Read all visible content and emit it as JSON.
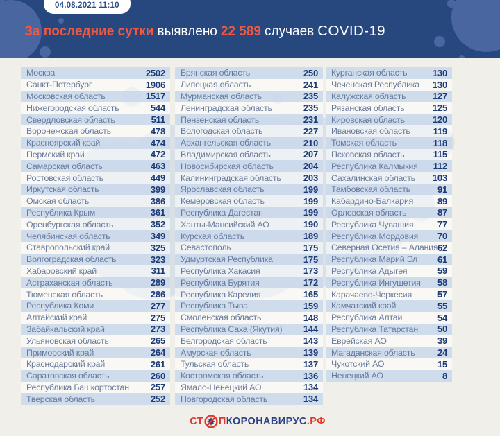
{
  "header": {
    "date": "04.08.2021 11:10",
    "title_accent": "За последние сутки",
    "title_mid": "выявлено",
    "title_count": "22 589",
    "title_tail": "случаев",
    "title_covid": "COVID-19"
  },
  "colors": {
    "header_navy": "#27477f",
    "accent_orange": "#f0583f",
    "stripe_blue": "#cad9ec",
    "value_navy": "#1c3a75",
    "label_gray_blue": "#687b9c",
    "logo_red": "#e03a2f",
    "logo_navy": "#2b3f85",
    "page_background": "#f1efe9"
  },
  "chart_data": {
    "type": "table",
    "title": "За последние сутки выявлено 22 589 случаев COVID-19",
    "total_new_cases": 22589,
    "date": "04.08.2021 11:10",
    "columns": [
      [
        {
          "region": "Москва",
          "value": "2502"
        },
        {
          "region": "Санкт-Петербург",
          "value": "1906"
        },
        {
          "region": "Московская область",
          "value": "1517"
        },
        {
          "region": "Нижегородская область",
          "value": "544"
        },
        {
          "region": "Свердловская область",
          "value": "511"
        },
        {
          "region": "Воронежская область",
          "value": "478"
        },
        {
          "region": "Красноярский край",
          "value": "474"
        },
        {
          "region": "Пермский край",
          "value": "472"
        },
        {
          "region": "Самарская область",
          "value": "463"
        },
        {
          "region": "Ростовская область",
          "value": "449"
        },
        {
          "region": "Иркутская область",
          "value": "399"
        },
        {
          "region": "Омская область",
          "value": "386"
        },
        {
          "region": "Республика Крым",
          "value": "361"
        },
        {
          "region": "Оренбургская область",
          "value": "352"
        },
        {
          "region": "Челябинская область",
          "value": "349"
        },
        {
          "region": "Ставропольский край",
          "value": "325"
        },
        {
          "region": "Волгоградская область",
          "value": "323"
        },
        {
          "region": "Хабаровский край",
          "value": "311"
        },
        {
          "region": "Астраханская область",
          "value": "289"
        },
        {
          "region": "Тюменская область",
          "value": "286"
        },
        {
          "region": "Республика Коми",
          "value": "277"
        },
        {
          "region": "Алтайский край",
          "value": "275"
        },
        {
          "region": "Забайкальский край",
          "value": "273"
        },
        {
          "region": "Ульяновская область",
          "value": "265"
        },
        {
          "region": "Приморский край",
          "value": "264"
        },
        {
          "region": "Краснодарский край",
          "value": "261"
        },
        {
          "region": "Саратовская область",
          "value": "260"
        },
        {
          "region": "Республика Башкортостан",
          "value": "257"
        },
        {
          "region": "Тверская область",
          "value": "252"
        }
      ],
      [
        {
          "region": "Брянская область",
          "value": "250"
        },
        {
          "region": "Липецкая область",
          "value": "241"
        },
        {
          "region": "Мурманская область",
          "value": "235"
        },
        {
          "region": "Ленинградская область",
          "value": "235"
        },
        {
          "region": "Пензенская область",
          "value": "231"
        },
        {
          "region": "Вологодская область",
          "value": "227"
        },
        {
          "region": "Архангельская область",
          "value": "210"
        },
        {
          "region": "Владимирская область",
          "value": "207"
        },
        {
          "region": "Новосибирская область",
          "value": "204"
        },
        {
          "region": "Калининградская область",
          "value": "203"
        },
        {
          "region": "Ярославская область",
          "value": "199"
        },
        {
          "region": "Кемеровская область",
          "value": "199"
        },
        {
          "region": "Республика Дагестан",
          "value": "199"
        },
        {
          "region": "Ханты-Мансийский АО",
          "value": "190"
        },
        {
          "region": "Курская область",
          "value": "189"
        },
        {
          "region": "Севастополь",
          "value": "175"
        },
        {
          "region": "Удмуртская Республика",
          "value": "175"
        },
        {
          "region": "Республика Хакасия",
          "value": "173"
        },
        {
          "region": "Республика Бурятия",
          "value": "172"
        },
        {
          "region": "Республика Карелия",
          "value": "165"
        },
        {
          "region": "Республика Тыва",
          "value": "159"
        },
        {
          "region": "Смоленская область",
          "value": "148"
        },
        {
          "region": "Республика Саха (Якутия)",
          "value": "144"
        },
        {
          "region": "Белгородская область",
          "value": "143"
        },
        {
          "region": "Амурская область",
          "value": "139"
        },
        {
          "region": "Тульская область",
          "value": "137"
        },
        {
          "region": "Костромская область",
          "value": "136"
        },
        {
          "region": "Ямало-Ненецкий АО",
          "value": "134"
        },
        {
          "region": "Новгородская область",
          "value": "134"
        }
      ],
      [
        {
          "region": "Курганская область",
          "value": "130"
        },
        {
          "region": "Чеченская Республика",
          "value": "130"
        },
        {
          "region": "Калужская область",
          "value": "127"
        },
        {
          "region": "Рязанская область",
          "value": "125"
        },
        {
          "region": "Кировская область",
          "value": "120"
        },
        {
          "region": "Ивановская область",
          "value": "119"
        },
        {
          "region": "Томская область",
          "value": "118"
        },
        {
          "region": "Псковская область",
          "value": "115"
        },
        {
          "region": "Республика Калмыкия",
          "value": "112"
        },
        {
          "region": "Сахалинская область",
          "value": "103"
        },
        {
          "region": "Тамбовская область",
          "value": "91"
        },
        {
          "region": "Кабардино-Балкария",
          "value": "89"
        },
        {
          "region": "Орловская область",
          "value": "87"
        },
        {
          "region": "Республика Чувашия",
          "value": "77"
        },
        {
          "region": "Республика Мордовия",
          "value": "70"
        },
        {
          "region": "Северная Осетия – Алания",
          "value": "62"
        },
        {
          "region": "Республика Марий Эл",
          "value": "61"
        },
        {
          "region": "Республика Адыгея",
          "value": "59"
        },
        {
          "region": "Республика Ингушетия",
          "value": "58"
        },
        {
          "region": "Карачаево-Черкесия",
          "value": "57"
        },
        {
          "region": "Камчатский край",
          "value": "55"
        },
        {
          "region": "Республика Алтай",
          "value": "54"
        },
        {
          "region": "Республика Татарстан",
          "value": "50"
        },
        {
          "region": "Еврейская АО",
          "value": "39"
        },
        {
          "region": "Магаданская область",
          "value": "24"
        },
        {
          "region": "Чукотский АО",
          "value": "15"
        },
        {
          "region": "Ненецкий АО",
          "value": "8"
        }
      ]
    ]
  },
  "footer": {
    "logo_st": "СТ",
    "logo_p": "П",
    "logo_main": "КОРОНАВИРУС",
    "logo_rf": ".РФ"
  }
}
